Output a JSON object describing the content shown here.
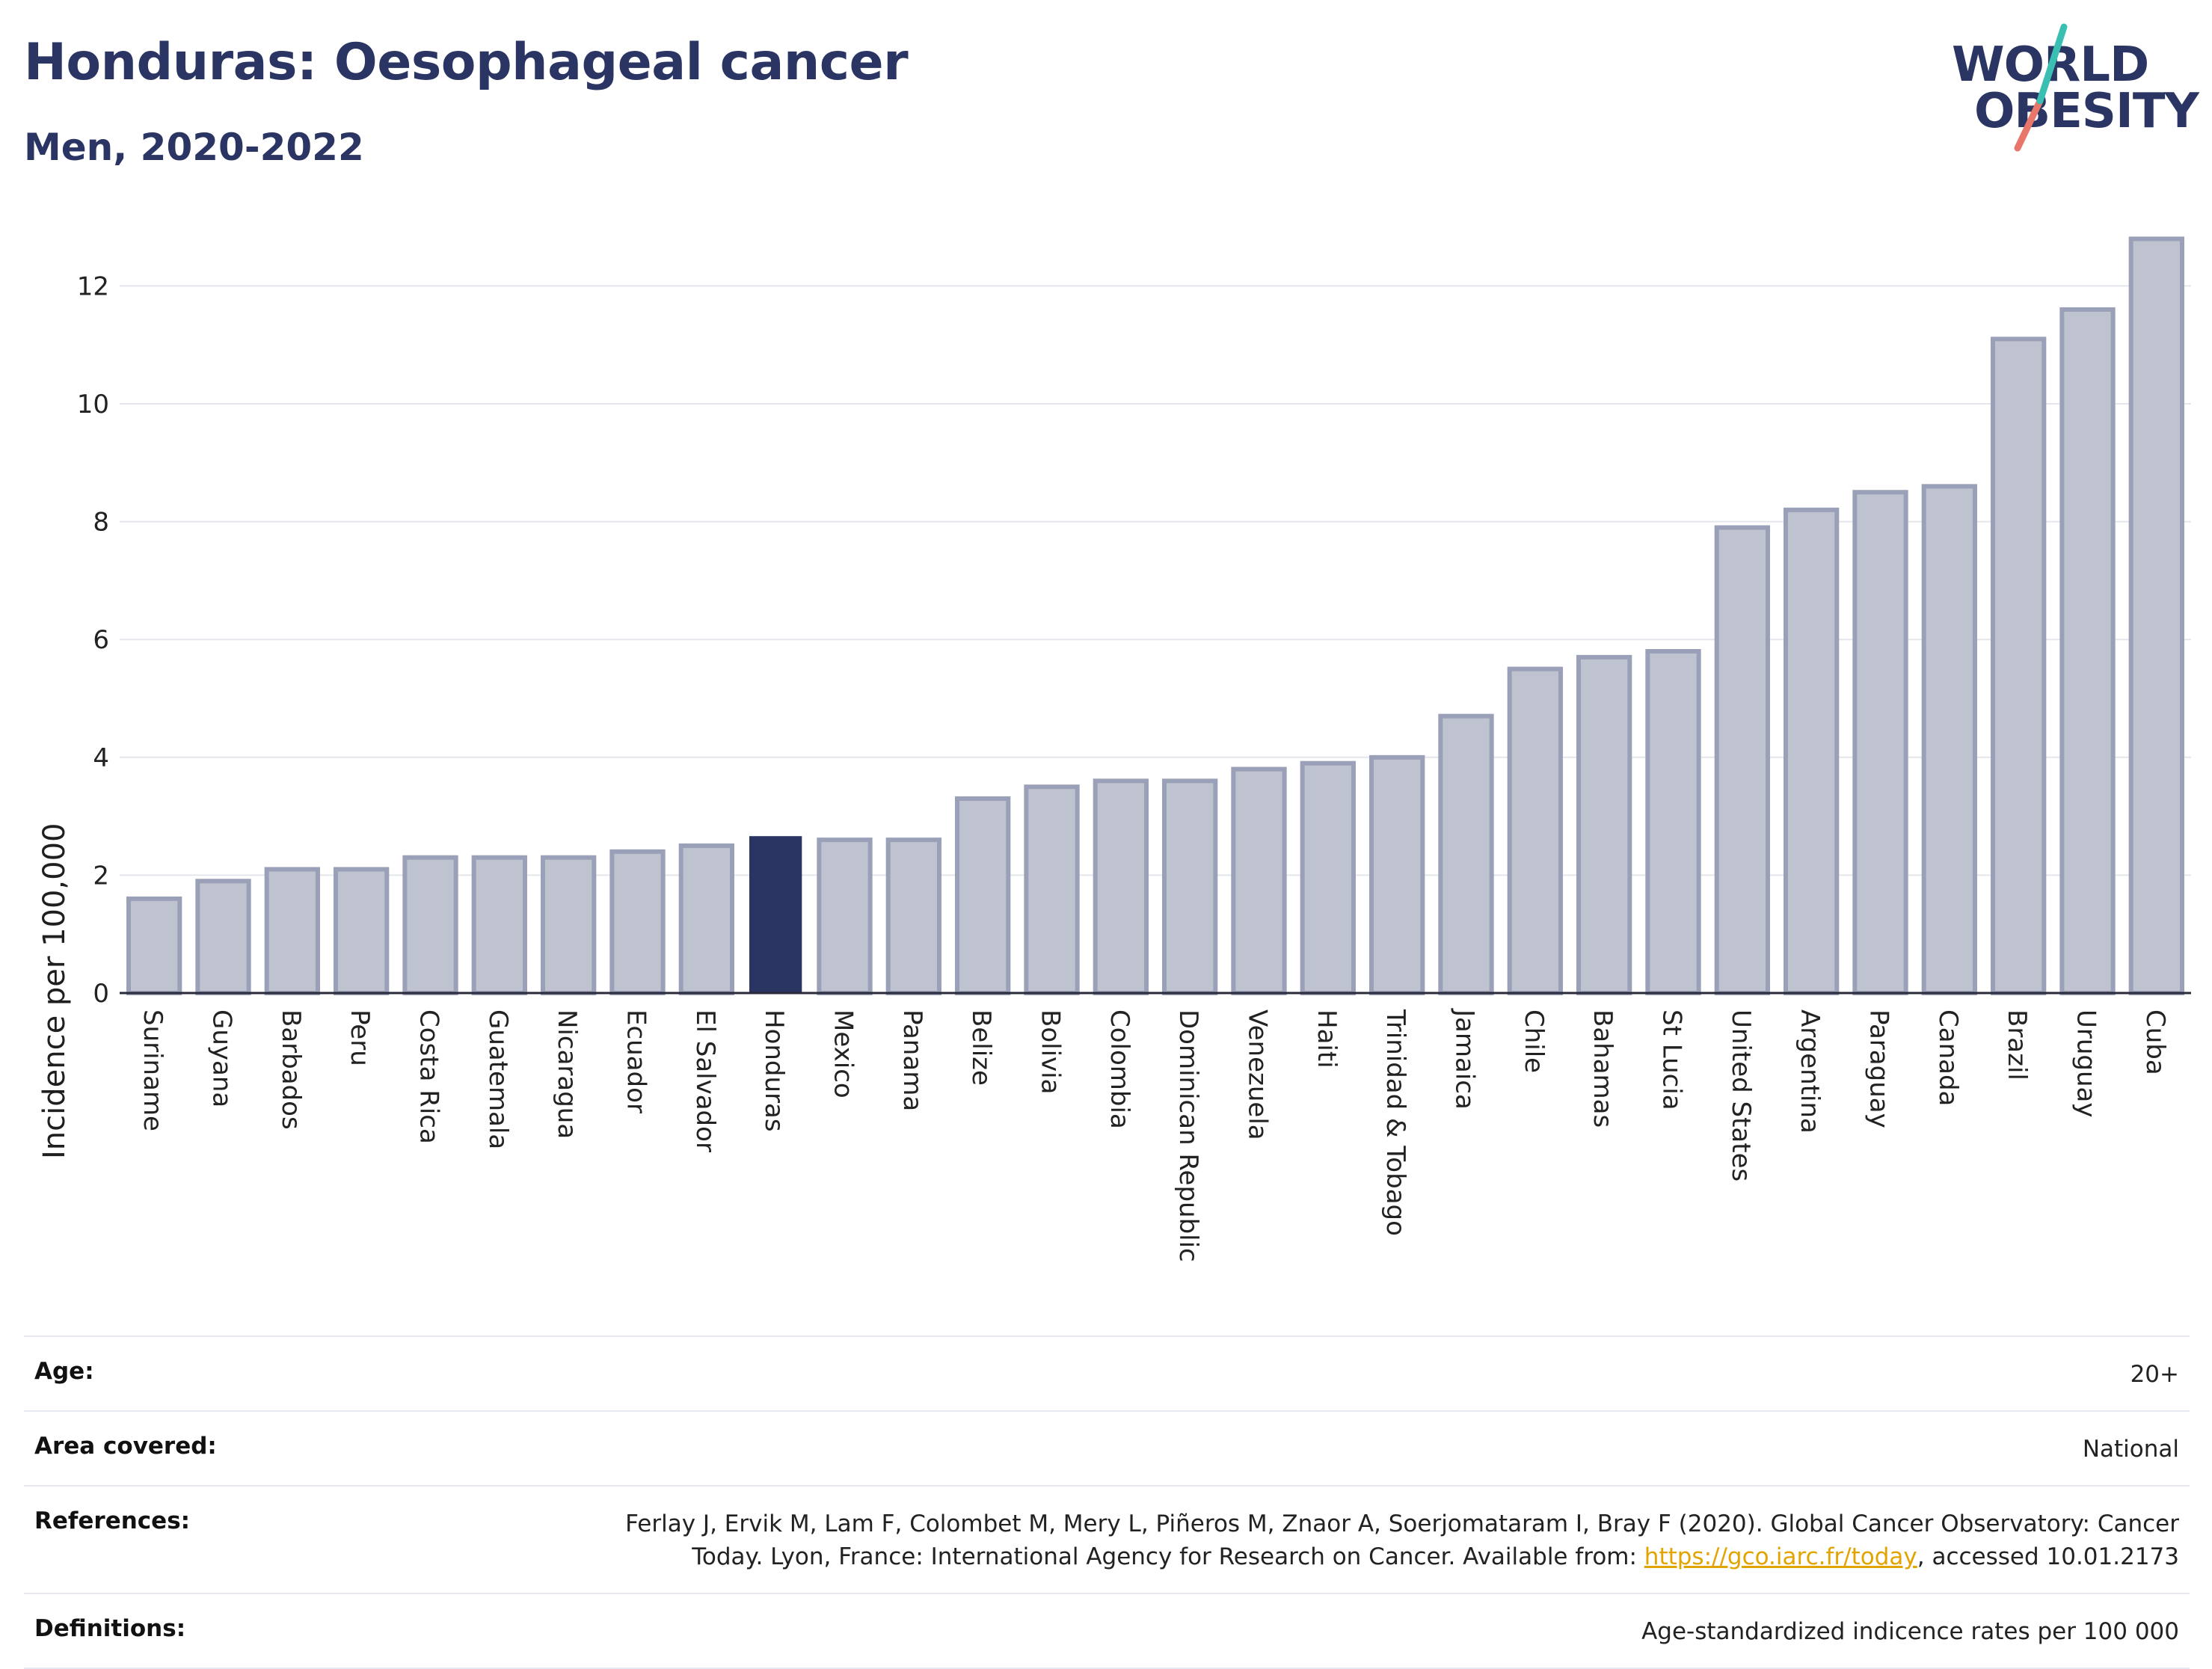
{
  "header": {
    "title": "Honduras: Oesophageal cancer",
    "subtitle": "Men, 2020-2022"
  },
  "logo": {
    "line1": "WORLD",
    "line2": "OBESITY"
  },
  "colors": {
    "title": "#2a3563",
    "bar": "#bfc3d0",
    "bar_stroke": "#9aa0b8",
    "highlight": "#2a3563",
    "logo_slash_top": "#3bbfb2",
    "logo_slash_bottom": "#e8766a"
  },
  "chart_data": {
    "type": "bar",
    "ylabel": "Incidence per 100,000",
    "ylim": [
      0,
      13.3
    ],
    "yticks": [
      0,
      2,
      4,
      6,
      8,
      10,
      12
    ],
    "grid": true,
    "highlight": "Honduras",
    "categories": [
      "Suriname",
      "Guyana",
      "Barbados",
      "Peru",
      "Costa Rica",
      "Guatemala",
      "Nicaragua",
      "Ecuador",
      "El Salvador",
      "Honduras",
      "Mexico",
      "Panama",
      "Belize",
      "Bolivia",
      "Colombia",
      "Dominican Republic",
      "Venezuela",
      "Haiti",
      "Trinidad & Tobago",
      "Jamaica",
      "Chile",
      "Bahamas",
      "St Lucia",
      "United States",
      "Argentina",
      "Paraguay",
      "Canada",
      "Brazil",
      "Uruguay",
      "Cuba"
    ],
    "values": [
      1.6,
      1.9,
      2.1,
      2.1,
      2.3,
      2.3,
      2.3,
      2.4,
      2.5,
      2.65,
      2.6,
      2.6,
      3.3,
      3.5,
      3.6,
      3.6,
      3.8,
      3.9,
      4.0,
      4.7,
      5.5,
      5.7,
      5.8,
      7.9,
      8.2,
      8.5,
      8.6,
      11.1,
      11.6,
      12.8
    ]
  },
  "info": {
    "age_label": "Age:",
    "age_value": "20+",
    "area_label": "Area covered:",
    "area_value": "National",
    "references_label": "References:",
    "references_text_1": "Ferlay J, Ervik M, Lam F, Colombet M, Mery L, Piñeros M, Znaor A, Soerjomataram I, Bray F (2020). Global Cancer Observatory: Cancer",
    "references_text_2": "Today. Lyon, France: International Agency for Research on Cancer. Available from: ",
    "references_link": "https://gco.iarc.fr/today",
    "references_text_3": ", accessed 10.01.2173",
    "definitions_label": "Definitions:",
    "definitions_value": "Age-standardized indicence rates per 100 000"
  }
}
